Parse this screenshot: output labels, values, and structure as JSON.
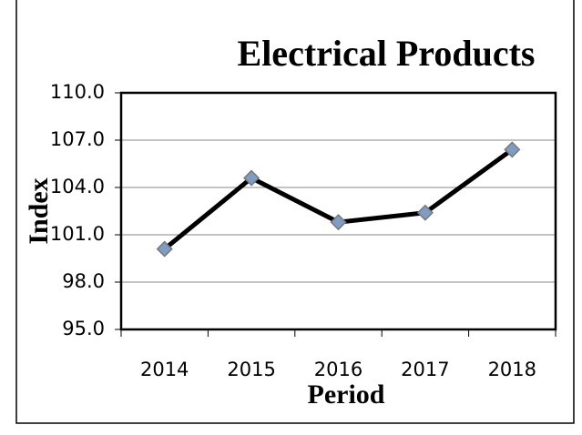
{
  "chart_data": {
    "type": "line",
    "title": "Electrical Products",
    "x_label": "Period",
    "y_label": "Index",
    "categories": [
      "2014",
      "2015",
      "2016",
      "2017",
      "2018"
    ],
    "series": [
      {
        "name": "Index",
        "color": "#000000",
        "marker_color": "#7f9cc4",
        "values": [
          100.1,
          104.6,
          101.8,
          102.4,
          106.4
        ]
      }
    ],
    "ylim": [
      95,
      110
    ],
    "yticks": [
      {
        "value": 95,
        "label": "95.0"
      },
      {
        "value": 98,
        "label": "98.0"
      },
      {
        "value": 101,
        "label": "101.0"
      },
      {
        "value": 104,
        "label": "104.0"
      },
      {
        "value": 107,
        "label": "107.0"
      },
      {
        "value": 110,
        "label": "110.0"
      }
    ],
    "grid": true
  }
}
